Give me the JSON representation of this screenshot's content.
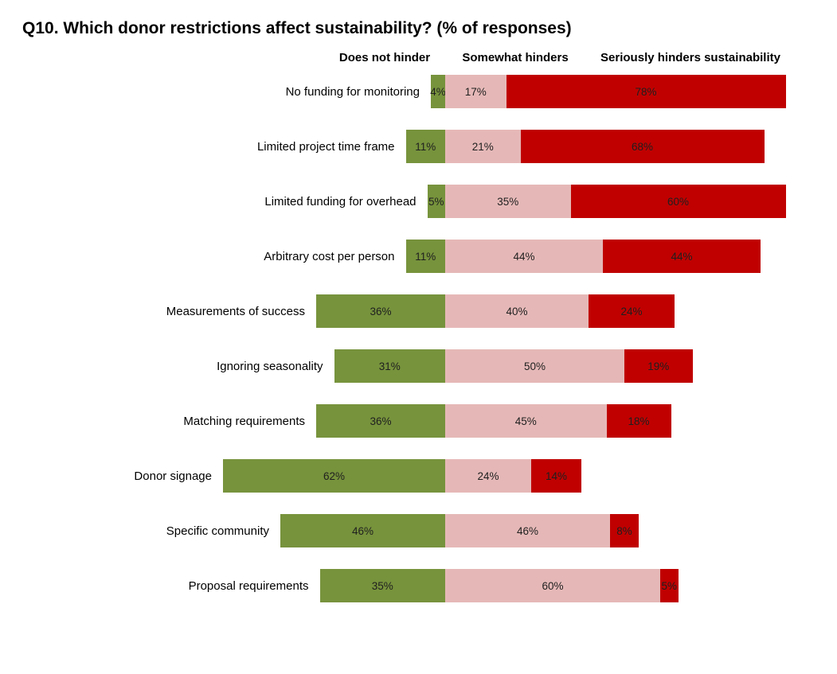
{
  "title": "Q10. Which donor restrictions affect sustainability? (% of responses)",
  "chart_data": {
    "type": "bar",
    "subtype": "horizontal-stacked-pivot-aligned",
    "title": "Q10. Which donor restrictions affect sustainability? (% of responses)",
    "xlabel": "",
    "ylabel": "",
    "unit": "%",
    "grid": false,
    "legend_position": "top-as-column-headers",
    "categories": [
      "No funding for monitoring",
      "Limited project time frame",
      "Limited funding for overhead",
      "Arbitrary cost per person",
      "Measurements of success",
      "Ignoring seasonality",
      "Matching requirements",
      "Donor signage",
      "Specific community",
      "Proposal requirements"
    ],
    "series": [
      {
        "name": "Does not hinder",
        "color": "#77933C",
        "values": [
          4,
          11,
          5,
          11,
          36,
          31,
          36,
          62,
          46,
          35
        ]
      },
      {
        "name": "Somewhat hinders",
        "color": "#E5B8B7",
        "values": [
          17,
          21,
          35,
          44,
          40,
          50,
          45,
          24,
          46,
          60
        ]
      },
      {
        "name": "Seriously hinders sustainability",
        "color": "#C00000",
        "values": [
          78,
          68,
          60,
          44,
          24,
          19,
          18,
          14,
          8,
          5
        ]
      }
    ],
    "value_label_format": "{value}%",
    "value_label_color": "#1f1f1f",
    "alignment_note": "bars aligned on boundary between first and second series; first series extends left, others extend right"
  }
}
